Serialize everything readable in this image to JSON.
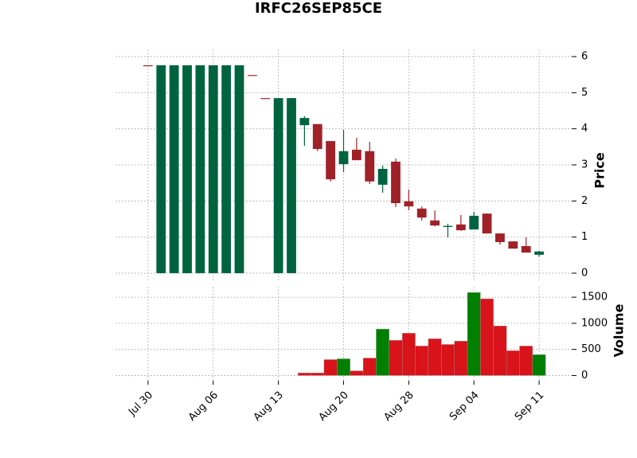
{
  "chart_data": {
    "type": "candlestick",
    "title": "IRFC26SEP85CE",
    "categories": [
      "Jul 30",
      null,
      null,
      null,
      null,
      "Aug 06",
      null,
      null,
      null,
      null,
      "Aug 13",
      null,
      null,
      null,
      null,
      "Aug 20",
      null,
      null,
      null,
      null,
      "Aug 28",
      null,
      null,
      null,
      null,
      "Sep 04",
      null,
      null,
      null,
      null,
      "Sep 11"
    ],
    "open": [
      5.76,
      0,
      0,
      0,
      0,
      0,
      0,
      0,
      5.49,
      4.85,
      0,
      0,
      4.1,
      4.13,
      3.66,
      3.02,
      3.42,
      3.38,
      2.45,
      3.09,
      1.99,
      1.79,
      1.46,
      1.28,
      1.35,
      1.21,
      1.65,
      1.1,
      0.88,
      0.75,
      0.51
    ],
    "high": [
      5.76,
      5.76,
      5.76,
      5.76,
      5.76,
      5.76,
      5.76,
      5.76,
      5.49,
      4.85,
      4.85,
      4.85,
      4.35,
      4.13,
      3.66,
      3.97,
      3.75,
      3.64,
      2.98,
      3.18,
      2.32,
      1.85,
      1.74,
      1.37,
      1.61,
      1.7,
      1.65,
      1.1,
      0.88,
      0.99,
      0.62
    ],
    "low": [
      5.76,
      0,
      0,
      0,
      0,
      0,
      0,
      0,
      5.49,
      4.85,
      0,
      0,
      3.53,
      3.38,
      2.54,
      2.8,
      3.13,
      2.47,
      2.23,
      1.83,
      1.74,
      1.46,
      1.3,
      0.99,
      1.17,
      1.21,
      1.1,
      0.79,
      0.68,
      0.57,
      0.46
    ],
    "close": [
      5.76,
      5.76,
      5.76,
      5.76,
      5.76,
      5.76,
      5.76,
      5.76,
      5.49,
      4.85,
      4.85,
      4.85,
      4.3,
      3.44,
      2.6,
      3.38,
      3.13,
      2.54,
      2.89,
      1.94,
      1.85,
      1.54,
      1.32,
      1.31,
      1.19,
      1.59,
      1.1,
      0.86,
      0.68,
      0.57,
      0.6
    ],
    "volume": [
      null,
      null,
      null,
      null,
      null,
      null,
      null,
      null,
      null,
      null,
      null,
      null,
      50,
      50,
      305,
      320,
      90,
      335,
      890,
      675,
      810,
      565,
      705,
      595,
      660,
      1590,
      1470,
      950,
      475,
      565,
      400
    ],
    "up_color": "#006340",
    "down_color": "#a02128",
    "volume_up_color": "#007f00",
    "volume_down_color": "#d8131a",
    "ylabel": "Price",
    "ylim": [
      -0.2,
      6.2
    ],
    "yticks": [
      0,
      1,
      2,
      3,
      4,
      5,
      6
    ],
    "volume_label": "Volume",
    "volume_ylim": [
      -100,
      1700
    ],
    "volume_ticks": [
      0,
      500,
      1000,
      1500
    ],
    "grid": true
  }
}
